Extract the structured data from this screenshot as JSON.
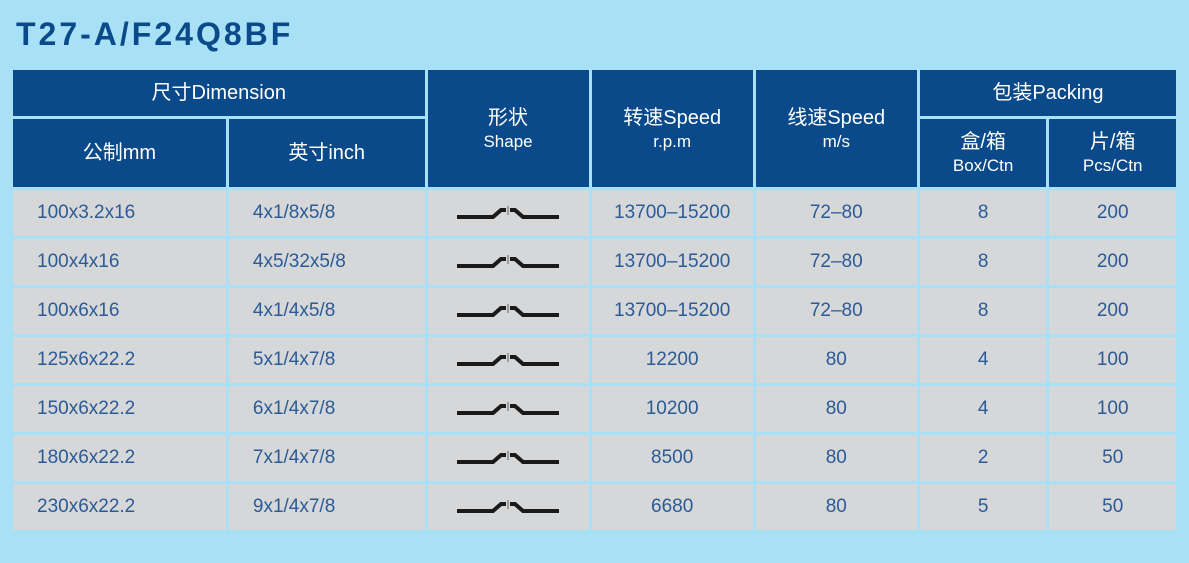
{
  "title": "T27-A/F24Q8BF",
  "colors": {
    "page_bg": "#a8e0f5",
    "header_bg": "#0a4a8a",
    "header_fg": "#ffffff",
    "cell_bg": "#d6d7d9",
    "cell_fg": "#2a5b96",
    "title_fg": "#0a4a8a",
    "shape_stroke": "#1a1a1a"
  },
  "headers": {
    "dimension": "尺寸Dimension",
    "mm": "公制mm",
    "inch": "英寸inch",
    "shape": "形状",
    "shape_en": "Shape",
    "speed_rpm": "转速Speed",
    "speed_rpm_unit": "r.p.m",
    "speed_ms": "线速Speed",
    "speed_ms_unit": "m/s",
    "packing": "包装Packing",
    "box_ctn": "盒/箱",
    "box_ctn_en": "Box/Ctn",
    "pcs_ctn": "片/箱",
    "pcs_ctn_en": "Pcs/Ctn"
  },
  "rows": [
    {
      "mm": "100x3.2x16",
      "inch": "4x1/8x5/8",
      "rpm": "13700–15200",
      "ms": "72–80",
      "box": "8",
      "pcs": "200"
    },
    {
      "mm": "100x4x16",
      "inch": "4x5/32x5/8",
      "rpm": "13700–15200",
      "ms": "72–80",
      "box": "8",
      "pcs": "200"
    },
    {
      "mm": "100x6x16",
      "inch": "4x1/4x5/8",
      "rpm": "13700–15200",
      "ms": "72–80",
      "box": "8",
      "pcs": "200"
    },
    {
      "mm": "125x6x22.2",
      "inch": "5x1/4x7/8",
      "rpm": "12200",
      "ms": "80",
      "box": "4",
      "pcs": "100"
    },
    {
      "mm": "150x6x22.2",
      "inch": "6x1/4x7/8",
      "rpm": "10200",
      "ms": "80",
      "box": "4",
      "pcs": "100"
    },
    {
      "mm": "180x6x22.2",
      "inch": "7x1/4x7/8",
      "rpm": "8500",
      "ms": "80",
      "box": "2",
      "pcs": "50"
    },
    {
      "mm": "230x6x22.2",
      "inch": "9x1/4x7/8",
      "rpm": "6680",
      "ms": "80",
      "box": "5",
      "pcs": "50"
    }
  ],
  "col_widths_pct": [
    18.5,
    17,
    14,
    14,
    14,
    11,
    11
  ]
}
